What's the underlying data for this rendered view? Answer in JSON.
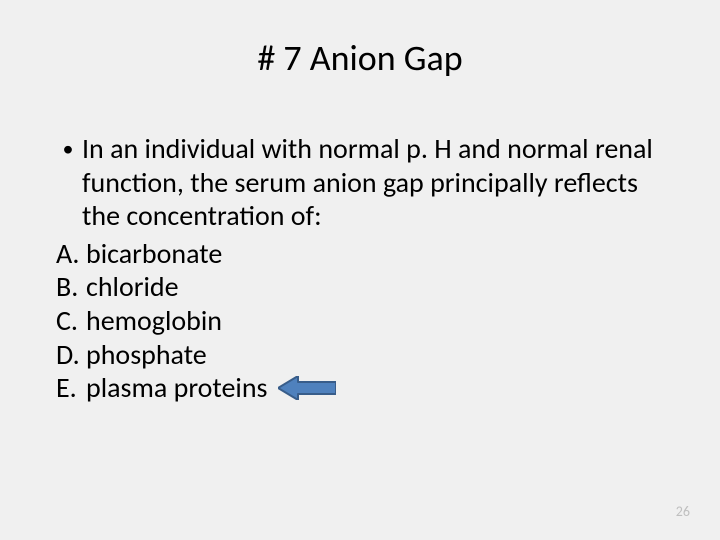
{
  "slide": {
    "title": "# 7 Anion Gap",
    "question": "In an individual with normal p. H and normal renal function, the serum anion gap principally reflects the concentration of:",
    "options": [
      {
        "letter": "A.",
        "text": "bicarbonate"
      },
      {
        "letter": "B.",
        "text": "chloride"
      },
      {
        "letter": "C.",
        "text": "hemoglobin"
      },
      {
        "letter": "D.",
        "text": "phosphate"
      },
      {
        "letter": "E.",
        "text": "plasma proteins"
      }
    ],
    "answer_index": 4,
    "page_number": "26",
    "bullet_char": "•"
  },
  "arrow": {
    "fill": "#4f81bd",
    "stroke": "#385d8a",
    "stroke_width": 2,
    "width": 58,
    "height": 24
  },
  "colors": {
    "background": "#f0f0f0",
    "text": "#000000",
    "page_number": "#bfbfbf"
  },
  "typography": {
    "title_fontsize": 36,
    "body_fontsize": 28,
    "page_number_fontsize": 14,
    "font_family": "Calibri"
  }
}
